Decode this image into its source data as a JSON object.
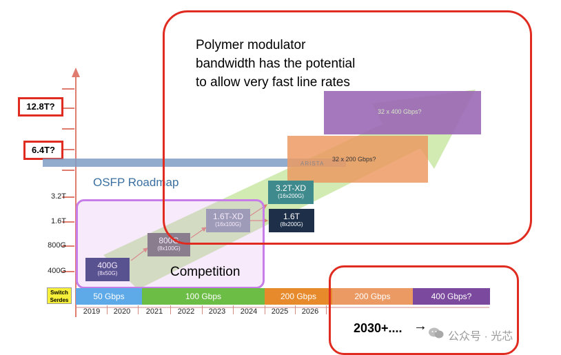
{
  "callout_text": [
    "Polymer modulator",
    "bandwidth has the potential",
    "to allow very fast line rates"
  ],
  "y_boxes": [
    "12.8T?",
    "6.4T?"
  ],
  "y_labels": [
    "3.2T",
    "1.6T",
    "800G",
    "400G"
  ],
  "roadmap_title": "OSFP Roadmap",
  "brand_watermark": "ARISTA",
  "competition_label": "Competition",
  "chips": [
    {
      "main": "400G",
      "sub": "(8x50G)"
    },
    {
      "main": "800G",
      "sub": "(8x100G)"
    },
    {
      "main": "1.6T-XD",
      "sub": "(16x100G)"
    },
    {
      "main": "3.2T-XD",
      "sub": "(16x200G)"
    },
    {
      "main": "1.6T",
      "sub": "(8x200G)"
    }
  ],
  "future_boxes": [
    "32 x 200 Gbps?",
    "32 x 400 Gbps?"
  ],
  "switch_serdes_label": [
    "Switch",
    "Serdes"
  ],
  "serdes_segments": [
    "50 Gbps",
    "100 Gbps",
    "200 Gbps",
    "200 Gbps",
    "400 Gbps?"
  ],
  "years": [
    "2019",
    "2020",
    "2021",
    "2022",
    "2023",
    "2024",
    "2025",
    "2026"
  ],
  "future_label": "2030+....",
  "future_arrow": "→",
  "watermark": "公众号 · 光芯",
  "colors": {
    "red_outline": "#e02b20",
    "purple_outline": "#c77de8",
    "green_arrow": "#c9e8a6",
    "navy": "#1f2a5c"
  }
}
